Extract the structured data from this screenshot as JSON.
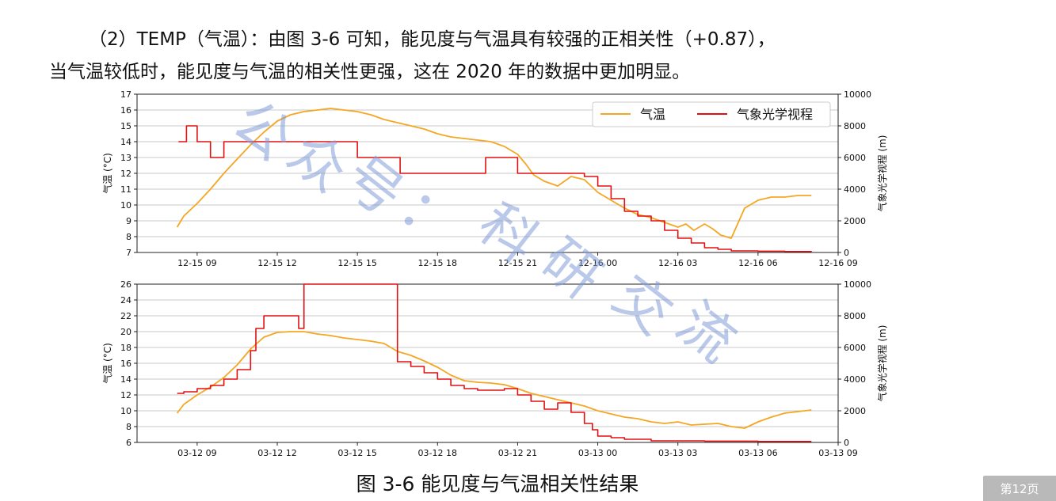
{
  "paragraph": {
    "line1": "（2）TEMP（气温）：由图 3-6 可知，能见度与气温具有较强的正相关性（+0.87），",
    "line2": "当气温较低时，能见度与气温的相关性更强，这在 2020 年的数据中更加明显。"
  },
  "caption": "图 3-6  能见度与气温相关性结果",
  "watermark": [
    "公",
    "众",
    "号",
    "：",
    "科",
    "研",
    "交",
    "流"
  ],
  "page_badge": "第12页",
  "colors": {
    "temperature": "#f5a623",
    "visibility": "#e01010",
    "grid": "#c8c8c8"
  },
  "chart_data": [
    {
      "type": "line",
      "ylabel": "气温 (°C)",
      "y2label": "气象光学视程 (m)",
      "ylim": [
        7,
        17
      ],
      "y2lim": [
        0,
        10000
      ],
      "yticks": [
        "7",
        "8",
        "9",
        "10",
        "11",
        "12",
        "13",
        "14",
        "15",
        "16",
        "17"
      ],
      "y2ticks": [
        "0",
        "2000",
        "4000",
        "6000",
        "8000",
        "10000"
      ],
      "xticks": [
        "12-15 09",
        "12-15 12",
        "12-15 15",
        "12-15 18",
        "12-15 21",
        "12-16 00",
        "12-16 03",
        "12-16 06",
        "12-16 09"
      ],
      "grid": "horizontal",
      "legend": {
        "position": "top-right",
        "entries": [
          "气温",
          "气象光学视程"
        ]
      },
      "series": [
        {
          "name": "气温",
          "axis": "left",
          "x": [
            8.25,
            8.5,
            9,
            9.5,
            10,
            10.5,
            11,
            11.5,
            12,
            12.5,
            13,
            13.5,
            14,
            14.5,
            15,
            15.5,
            16,
            16.5,
            17,
            17.5,
            18,
            18.5,
            19,
            19.5,
            20,
            20.5,
            21,
            21.3,
            21.6,
            22,
            22.5,
            23,
            23.5,
            24,
            24.5,
            25,
            25.5,
            26,
            26.5,
            27,
            27.3,
            27.6,
            28,
            28.3,
            28.6,
            29,
            29.5,
            30,
            30.5,
            31,
            31.5,
            32
          ],
          "values": [
            8.6,
            9.3,
            10.1,
            11.0,
            12.0,
            12.9,
            13.8,
            14.6,
            15.3,
            15.7,
            15.9,
            16.0,
            16.1,
            16.0,
            15.9,
            15.7,
            15.4,
            15.2,
            15.0,
            14.8,
            14.5,
            14.3,
            14.2,
            14.1,
            14.0,
            13.7,
            13.2,
            12.6,
            11.9,
            11.5,
            11.2,
            11.8,
            11.6,
            10.8,
            10.3,
            9.8,
            9.4,
            9.2,
            8.9,
            8.6,
            8.8,
            8.4,
            8.8,
            8.5,
            8.1,
            7.9,
            9.8,
            10.3,
            10.5,
            10.5,
            10.6,
            10.6
          ]
        },
        {
          "name": "气象光学视程",
          "axis": "right",
          "x": [
            8.3,
            8.6,
            9.0,
            9.5,
            10.0,
            10.5,
            11.0,
            12.0,
            13.0,
            14.0,
            15.0,
            16.0,
            16.6,
            17.0,
            18.0,
            19.0,
            19.8,
            20.5,
            21.0,
            21.5,
            22.0,
            22.5,
            23.0,
            23.5,
            24.0,
            24.5,
            25.0,
            25.5,
            26.0,
            26.5,
            27.0,
            27.5,
            28.0,
            28.5,
            29.0,
            29.5,
            30.0,
            31.0,
            32.0
          ],
          "values": [
            7000,
            8000,
            7000,
            6000,
            7000,
            7000,
            7000,
            7000,
            7000,
            7000,
            6000,
            6000,
            5000,
            5000,
            5000,
            5000,
            6000,
            6000,
            5000,
            5000,
            5000,
            5000,
            5000,
            4800,
            4200,
            3400,
            2600,
            2300,
            2000,
            1400,
            900,
            600,
            300,
            200,
            100,
            100,
            80,
            60,
            50
          ]
        }
      ]
    },
    {
      "type": "line",
      "ylabel": "气温 (°C)",
      "y2label": "气象光学视程 (m)",
      "ylim": [
        6,
        26
      ],
      "y2lim": [
        0,
        10000
      ],
      "yticks": [
        "6",
        "8",
        "10",
        "12",
        "14",
        "16",
        "18",
        "20",
        "22",
        "24",
        "26"
      ],
      "y2ticks": [
        "0",
        "2000",
        "4000",
        "6000",
        "8000",
        "10000"
      ],
      "xticks": [
        "03-12 09",
        "03-12 12",
        "03-12 15",
        "03-12 18",
        "03-12 21",
        "03-13 00",
        "03-13 03",
        "03-13 06",
        "03-13 09"
      ],
      "grid": "horizontal",
      "series": [
        {
          "name": "气温",
          "axis": "left",
          "x": [
            8.25,
            8.5,
            9,
            9.5,
            10,
            10.5,
            11,
            11.5,
            12,
            12.5,
            13,
            13.5,
            14,
            14.5,
            15,
            15.5,
            16,
            16.5,
            17,
            17.5,
            18,
            18.5,
            19,
            19.5,
            20,
            20.5,
            21,
            21.5,
            22,
            22.5,
            23,
            23.5,
            24,
            24.5,
            25,
            25.5,
            26,
            26.5,
            27,
            27.5,
            28,
            28.5,
            29,
            29.5,
            30,
            30.5,
            31,
            31.5,
            32
          ],
          "values": [
            9.7,
            10.8,
            12.0,
            13.0,
            14.2,
            15.8,
            17.8,
            19.3,
            19.9,
            20.0,
            20.0,
            19.7,
            19.5,
            19.2,
            19.0,
            18.8,
            18.5,
            17.5,
            17.0,
            16.3,
            15.5,
            14.5,
            13.8,
            13.6,
            13.5,
            13.3,
            12.8,
            12.2,
            11.8,
            11.4,
            11.0,
            10.6,
            10.0,
            9.6,
            9.2,
            9.0,
            8.6,
            8.4,
            8.6,
            8.2,
            8.3,
            8.4,
            8.0,
            7.8,
            8.6,
            9.2,
            9.7,
            9.9,
            10.1
          ]
        },
        {
          "name": "气象光学视程",
          "axis": "right",
          "x": [
            8.25,
            8.5,
            9,
            9.5,
            10,
            10.5,
            11,
            11.2,
            11.5,
            12,
            12.5,
            12.8,
            13,
            14,
            15,
            16,
            16.4,
            16.5,
            17,
            17.5,
            18,
            18.5,
            19,
            19.5,
            20,
            20.5,
            21,
            21.5,
            22,
            22.5,
            23,
            23.5,
            23.8,
            24,
            24.5,
            25,
            26,
            28,
            30,
            32
          ],
          "values": [
            3100,
            3200,
            3400,
            3600,
            4000,
            4600,
            5800,
            7200,
            8000,
            8000,
            8000,
            7200,
            10000,
            10000,
            10000,
            10000,
            10000,
            5100,
            4800,
            4400,
            4000,
            3600,
            3400,
            3300,
            3300,
            3400,
            3000,
            2600,
            2100,
            2500,
            1900,
            1200,
            800,
            400,
            300,
            200,
            100,
            80,
            60,
            60
          ]
        }
      ]
    }
  ]
}
